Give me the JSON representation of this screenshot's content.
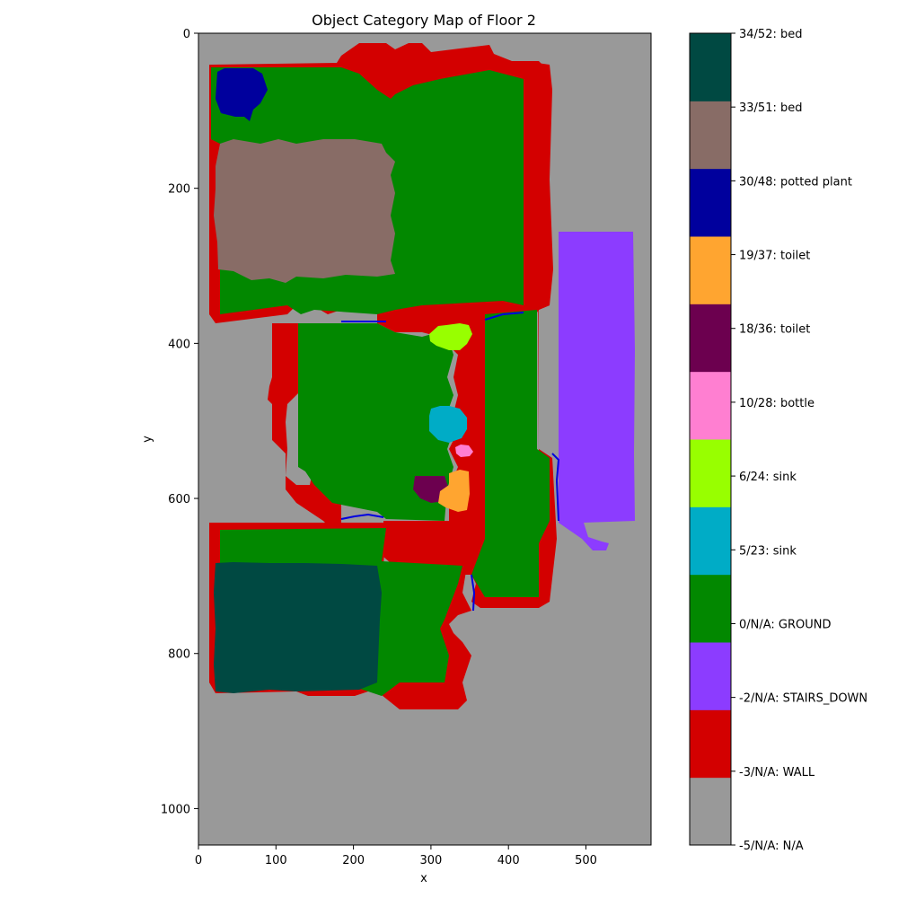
{
  "chart_data": {
    "type": "heatmap",
    "title": "Object Category Map of Floor 2",
    "xlabel": "x",
    "ylabel": "y",
    "xlim": [
      0,
      584
    ],
    "ylim": [
      1047,
      0
    ],
    "x_ticks": [
      0,
      100,
      200,
      300,
      400,
      500
    ],
    "y_ticks": [
      0,
      200,
      400,
      600,
      800,
      1000
    ],
    "colorbar_categories": [
      {
        "label": "-5/N/A: N/A",
        "color": "#999999"
      },
      {
        "label": "-3/N/A: WALL",
        "color": "#d30000"
      },
      {
        "label": "-2/N/A: STAIRS_DOWN",
        "color": "#8c3cff"
      },
      {
        "label": "0/N/A: GROUND",
        "color": "#028800"
      },
      {
        "label": "5/23: sink",
        "color": "#00acc6"
      },
      {
        "label": "6/24: sink",
        "color": "#98ff00"
      },
      {
        "label": "10/28: bottle",
        "color": "#ff7fd1"
      },
      {
        "label": "18/36: toilet",
        "color": "#6c004f"
      },
      {
        "label": "19/37: toilet",
        "color": "#ffa530"
      },
      {
        "label": "30/48: potted plant",
        "color": "#00009d"
      },
      {
        "label": "33/51: bed",
        "color": "#886c66"
      },
      {
        "label": "34/52: bed",
        "color": "#004942"
      }
    ],
    "regions": [
      {
        "category": "-3/N/A: WALL",
        "x": [
          18,
          460
        ],
        "y": [
          40,
          375
        ]
      },
      {
        "category": "-3/N/A: WALL",
        "x": [
          165,
          445
        ],
        "y": [
          20,
          120
        ]
      },
      {
        "category": "-3/N/A: WALL",
        "x": [
          420,
          462
        ],
        "y": [
          60,
          505
        ]
      },
      {
        "category": "-3/N/A: WALL",
        "x": [
          93,
          185
        ],
        "y": [
          345,
          505
        ]
      },
      {
        "category": "-3/N/A: WALL",
        "x": [
          235,
          315
        ],
        "y": [
          345,
          385
        ]
      },
      {
        "category": "-3/N/A: WALL",
        "x": [
          323,
          365
        ],
        "y": [
          365,
          660
        ]
      },
      {
        "category": "-3/N/A: WALL",
        "x": [
          10,
          425
        ],
        "y": [
          630,
          865
        ]
      },
      {
        "category": "-3/N/A: WALL",
        "x": [
          95,
          185
        ],
        "y": [
          485,
          640
        ]
      },
      {
        "category": "-3/N/A: WALL",
        "x": [
          355,
          465
        ],
        "y": [
          360,
          680
        ]
      },
      {
        "category": "0/N/A: GROUND",
        "x": [
          20,
          420
        ],
        "y": [
          40,
          350
        ]
      },
      {
        "category": "0/N/A: GROUND",
        "x": [
          385,
          455
        ],
        "y": [
          350,
          745
        ]
      },
      {
        "category": "0/N/A: GROUND",
        "x": [
          125,
          325
        ],
        "y": [
          370,
          580
        ]
      },
      {
        "category": "0/N/A: GROUND",
        "x": [
          30,
          350
        ],
        "y": [
          645,
          870
        ]
      },
      {
        "category": "30/48: potted plant",
        "x": [
          20,
          90
        ],
        "y": [
          40,
          115
        ]
      },
      {
        "category": "33/51: bed",
        "x": [
          25,
          255
        ],
        "y": [
          135,
          325
        ]
      },
      {
        "category": "-2/N/A: STAIRS_DOWN",
        "x": [
          465,
          566
        ],
        "y": [
          255,
          655
        ]
      },
      {
        "category": "6/24: sink",
        "x": [
          296,
          352
        ],
        "y": [
          380,
          443
        ]
      },
      {
        "category": "5/23: sink",
        "x": [
          296,
          350
        ],
        "y": [
          455,
          515
        ]
      },
      {
        "category": "10/28: bottle",
        "x": [
          334,
          352
        ],
        "y": [
          530,
          547
        ]
      },
      {
        "category": "18/36: toilet",
        "x": [
          275,
          321
        ],
        "y": [
          570,
          608
        ]
      },
      {
        "category": "19/37: toilet",
        "x": [
          308,
          350
        ],
        "y": [
          565,
          613
        ]
      },
      {
        "category": "34/52: bed",
        "x": [
          18,
          250
        ],
        "y": [
          683,
          852
        ]
      }
    ]
  }
}
